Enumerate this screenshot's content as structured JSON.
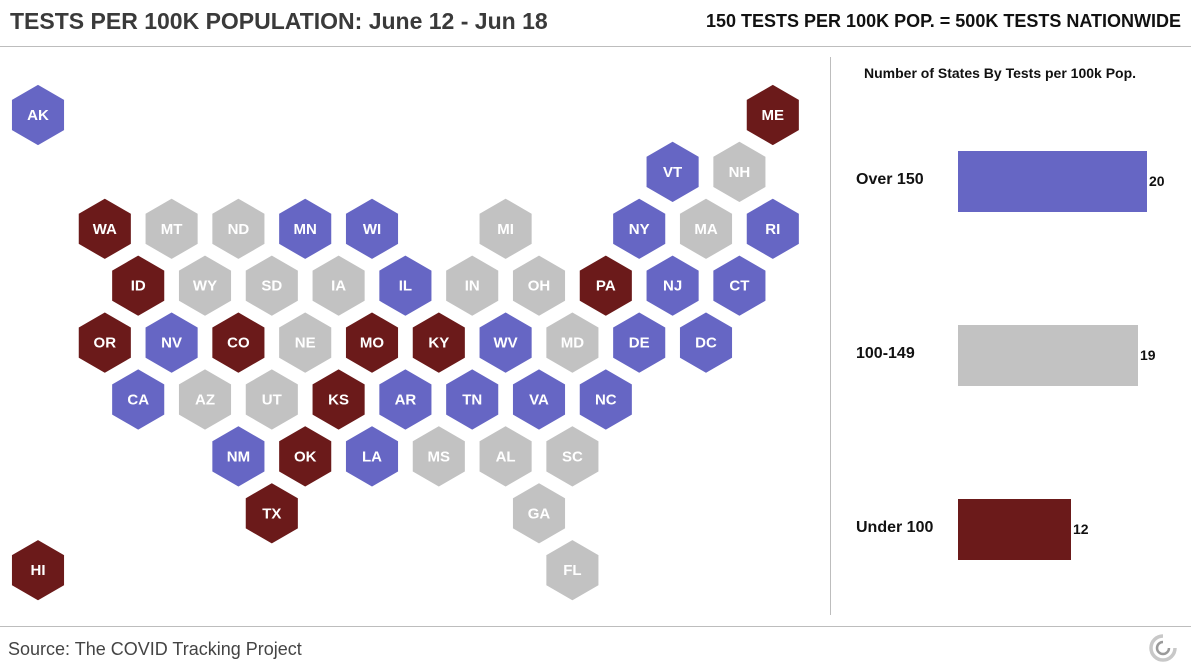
{
  "header": {
    "title": "TESTS PER 100K POPULATION: June 12 - Jun 18",
    "subtitle": "150 TESTS PER 100K POP. = 500K TESTS NATIONWIDE"
  },
  "footer": {
    "source": "Source: The COVID Tracking Project",
    "logo_icon": "covid-tracking-project-logo-icon"
  },
  "colors": {
    "over_150": "#6666c4",
    "100_149": "#c2c2c2",
    "under_100": "#6b1a1a"
  },
  "legend_panel": {
    "title": "Number of States By Tests per 100k Pop.",
    "bars": [
      {
        "label": "Over 150",
        "value": 20,
        "color": "#6666c4"
      },
      {
        "label": "100-149",
        "value": 19,
        "color": "#c2c2c2"
      },
      {
        "label": "Under 100",
        "value": 12,
        "color": "#6b1a1a"
      }
    ]
  },
  "states": [
    {
      "code": "AK",
      "row": 0,
      "col": 0,
      "cat": "over_150"
    },
    {
      "code": "ME",
      "row": 0,
      "col": 11,
      "cat": "under_100"
    },
    {
      "code": "VT",
      "row": 1,
      "col": 9.5,
      "cat": "over_150"
    },
    {
      "code": "NH",
      "row": 1,
      "col": 10.5,
      "cat": "100_149"
    },
    {
      "code": "WA",
      "row": 2,
      "col": 1,
      "cat": "under_100"
    },
    {
      "code": "MT",
      "row": 2,
      "col": 2,
      "cat": "100_149"
    },
    {
      "code": "ND",
      "row": 2,
      "col": 3,
      "cat": "100_149"
    },
    {
      "code": "MN",
      "row": 2,
      "col": 4,
      "cat": "over_150"
    },
    {
      "code": "WI",
      "row": 2,
      "col": 5,
      "cat": "over_150"
    },
    {
      "code": "MI",
      "row": 2,
      "col": 7,
      "cat": "100_149"
    },
    {
      "code": "NY",
      "row": 2,
      "col": 9,
      "cat": "over_150"
    },
    {
      "code": "MA",
      "row": 2,
      "col": 10,
      "cat": "100_149"
    },
    {
      "code": "RI",
      "row": 2,
      "col": 11,
      "cat": "over_150"
    },
    {
      "code": "ID",
      "row": 3,
      "col": 1.5,
      "cat": "under_100"
    },
    {
      "code": "WY",
      "row": 3,
      "col": 2.5,
      "cat": "100_149"
    },
    {
      "code": "SD",
      "row": 3,
      "col": 3.5,
      "cat": "100_149"
    },
    {
      "code": "IA",
      "row": 3,
      "col": 4.5,
      "cat": "100_149"
    },
    {
      "code": "IL",
      "row": 3,
      "col": 5.5,
      "cat": "over_150"
    },
    {
      "code": "IN",
      "row": 3,
      "col": 6.5,
      "cat": "100_149"
    },
    {
      "code": "OH",
      "row": 3,
      "col": 7.5,
      "cat": "100_149"
    },
    {
      "code": "PA",
      "row": 3,
      "col": 8.5,
      "cat": "under_100"
    },
    {
      "code": "NJ",
      "row": 3,
      "col": 9.5,
      "cat": "over_150"
    },
    {
      "code": "CT",
      "row": 3,
      "col": 10.5,
      "cat": "over_150"
    },
    {
      "code": "OR",
      "row": 4,
      "col": 1,
      "cat": "under_100"
    },
    {
      "code": "NV",
      "row": 4,
      "col": 2,
      "cat": "over_150"
    },
    {
      "code": "CO",
      "row": 4,
      "col": 3,
      "cat": "under_100"
    },
    {
      "code": "NE",
      "row": 4,
      "col": 4,
      "cat": "100_149"
    },
    {
      "code": "MO",
      "row": 4,
      "col": 5,
      "cat": "under_100"
    },
    {
      "code": "KY",
      "row": 4,
      "col": 6,
      "cat": "under_100"
    },
    {
      "code": "WV",
      "row": 4,
      "col": 7,
      "cat": "over_150"
    },
    {
      "code": "MD",
      "row": 4,
      "col": 8,
      "cat": "100_149"
    },
    {
      "code": "DE",
      "row": 4,
      "col": 9,
      "cat": "over_150"
    },
    {
      "code": "DC",
      "row": 4,
      "col": 10,
      "cat": "over_150"
    },
    {
      "code": "CA",
      "row": 5,
      "col": 1.5,
      "cat": "over_150"
    },
    {
      "code": "AZ",
      "row": 5,
      "col": 2.5,
      "cat": "100_149"
    },
    {
      "code": "UT",
      "row": 5,
      "col": 3.5,
      "cat": "100_149"
    },
    {
      "code": "KS",
      "row": 5,
      "col": 4.5,
      "cat": "under_100"
    },
    {
      "code": "AR",
      "row": 5,
      "col": 5.5,
      "cat": "over_150"
    },
    {
      "code": "TN",
      "row": 5,
      "col": 6.5,
      "cat": "over_150"
    },
    {
      "code": "VA",
      "row": 5,
      "col": 7.5,
      "cat": "over_150"
    },
    {
      "code": "NC",
      "row": 5,
      "col": 8.5,
      "cat": "over_150"
    },
    {
      "code": "NM",
      "row": 6,
      "col": 3,
      "cat": "over_150"
    },
    {
      "code": "OK",
      "row": 6,
      "col": 4,
      "cat": "under_100"
    },
    {
      "code": "LA",
      "row": 6,
      "col": 5,
      "cat": "over_150"
    },
    {
      "code": "MS",
      "row": 6,
      "col": 6,
      "cat": "100_149"
    },
    {
      "code": "AL",
      "row": 6,
      "col": 7,
      "cat": "100_149"
    },
    {
      "code": "SC",
      "row": 6,
      "col": 8,
      "cat": "100_149"
    },
    {
      "code": "TX",
      "row": 7,
      "col": 3.5,
      "cat": "under_100"
    },
    {
      "code": "GA",
      "row": 7,
      "col": 7.5,
      "cat": "100_149"
    },
    {
      "code": "HI",
      "row": 8,
      "col": 0,
      "cat": "under_100"
    },
    {
      "code": "FL",
      "row": 8,
      "col": 8,
      "cat": "100_149"
    }
  ]
}
